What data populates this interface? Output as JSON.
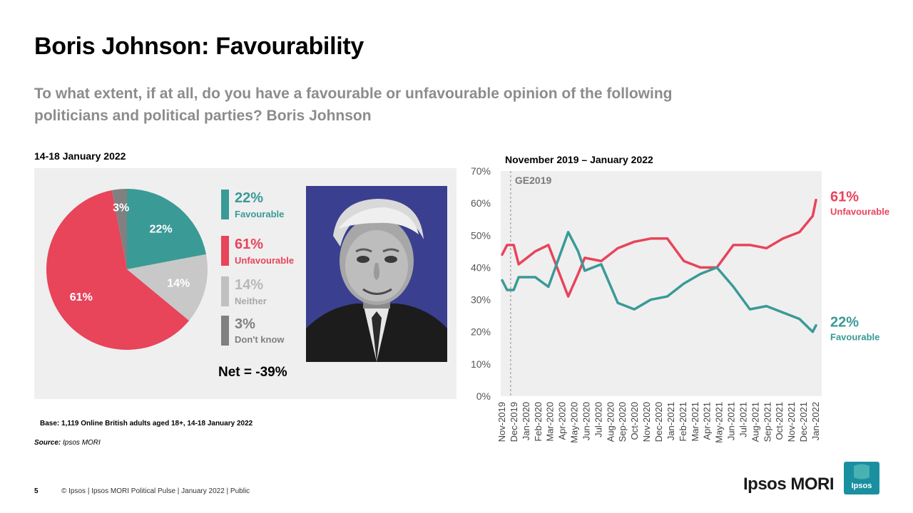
{
  "title": "Boris Johnson: Favourability",
  "subtitle": "To what extent, if at all, do you have a favourable or unfavourable opinion of the following politicians and political parties? Boris Johnson",
  "left_date": "14-18 January 2022",
  "right_date": "November 2019 – January 2022",
  "net": "Net = -39%",
  "base": "Base: 1,119 Online British adults aged 18+, 14-18 January 2022",
  "source_label": "Source:",
  "source_value": "Ipsos MORI",
  "page_number": "5",
  "footer": "© Ipsos | Ipsos MORI Political Pulse | January 2022 | Public",
  "brand": "Ipsos MORI",
  "logo_text": "Ipsos",
  "colors": {
    "favourable": "#3a9a96",
    "unfavourable": "#e8445a",
    "neither": "#c8c8c8",
    "dont_know": "#808080",
    "panel": "#efefef"
  },
  "legend": [
    {
      "pct": "22%",
      "label": "Favourable",
      "color": "#3a9a96"
    },
    {
      "pct": "61%",
      "label": "Unfavourable",
      "color": "#e8445a"
    },
    {
      "pct": "14%",
      "label": "Neither",
      "color": "#c0c0c0"
    },
    {
      "pct": "3%",
      "label": "Don't know",
      "color": "#808080"
    }
  ],
  "chart_data": [
    {
      "type": "pie",
      "slices": [
        {
          "name": "Favourable",
          "value": 22,
          "label": "22%",
          "color": "#3a9a96"
        },
        {
          "name": "Neither",
          "value": 14,
          "label": "14%",
          "color": "#c8c8c8"
        },
        {
          "name": "Unfavourable",
          "value": 61,
          "label": "61%",
          "color": "#e8445a"
        },
        {
          "name": "Don't know",
          "value": 3,
          "label": "3%",
          "color": "#808080"
        }
      ]
    },
    {
      "type": "line",
      "x": [
        "Nov-2019",
        "Dec-2019",
        "Jan-2020",
        "Feb-2020",
        "Mar-2020",
        "Apr-2020",
        "May-2020",
        "Jun-2020",
        "Jul-2020",
        "Aug-2020",
        "Sep-2020",
        "Oct-2020",
        "Nov-2020",
        "Dec-2020",
        "Jan-2021",
        "Feb-2021",
        "Mar-2021",
        "Apr-2021",
        "May-2021",
        "Jun-2021",
        "Jul-2021",
        "Aug-2021",
        "Sep-2021",
        "Oct-2021",
        "Nov-2021",
        "Dec-2021",
        "Jan-2022"
      ],
      "ylim": [
        0,
        70
      ],
      "yticks": [
        "0%",
        "10%",
        "20%",
        "30%",
        "40%",
        "50%",
        "60%",
        "70%"
      ],
      "annotation": {
        "label": "GE2019",
        "x_index": 1
      },
      "series": [
        {
          "name": "Unfavourable",
          "end_label": "61%",
          "color": "#e8445a",
          "points": [
            [
              0,
              44
            ],
            [
              0.3,
              47
            ],
            [
              0.7,
              47
            ],
            [
              1,
              41
            ],
            [
              2,
              45
            ],
            [
              2.8,
              47
            ],
            [
              4,
              31
            ],
            [
              4.6,
              38
            ],
            [
              5,
              43
            ],
            [
              6,
              42
            ],
            [
              7,
              46
            ],
            [
              8,
              48
            ],
            [
              9,
              49
            ],
            [
              10,
              49
            ],
            [
              11,
              42
            ],
            [
              12,
              40
            ],
            [
              13,
              40
            ],
            [
              14,
              47
            ],
            [
              15,
              47
            ],
            [
              16,
              46
            ],
            [
              17,
              49
            ],
            [
              18,
              51
            ],
            [
              18.8,
              56
            ],
            [
              19,
              61
            ]
          ]
        },
        {
          "name": "Favourable",
          "end_label": "22%",
          "color": "#3a9a96",
          "points": [
            [
              0,
              36
            ],
            [
              0.3,
              33
            ],
            [
              0.7,
              33
            ],
            [
              1,
              37
            ],
            [
              2,
              37
            ],
            [
              2.8,
              34
            ],
            [
              4,
              51
            ],
            [
              4.6,
              45
            ],
            [
              5,
              39
            ],
            [
              6,
              41
            ],
            [
              7,
              29
            ],
            [
              8,
              27
            ],
            [
              9,
              30
            ],
            [
              10,
              31
            ],
            [
              11,
              35
            ],
            [
              12,
              38
            ],
            [
              13,
              40
            ],
            [
              14,
              34
            ],
            [
              15,
              27
            ],
            [
              16,
              28
            ],
            [
              17,
              26
            ],
            [
              18,
              24
            ],
            [
              18.8,
              20
            ],
            [
              19,
              22
            ]
          ]
        }
      ]
    }
  ]
}
